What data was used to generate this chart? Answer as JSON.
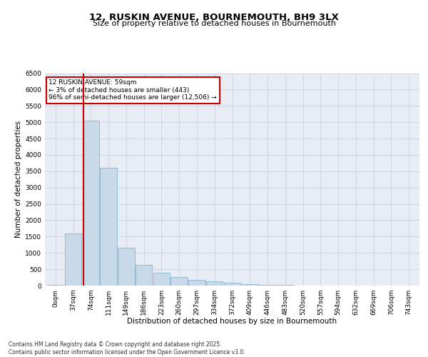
{
  "title_line1": "12, RUSKIN AVENUE, BOURNEMOUTH, BH9 3LX",
  "title_line2": "Size of property relative to detached houses in Bournemouth",
  "xlabel": "Distribution of detached houses by size in Bournemouth",
  "ylabel": "Number of detached properties",
  "bar_color": "#c8d9ea",
  "bar_edge_color": "#7aaac8",
  "property_line_x": 1.6,
  "property_line_color": "#cc0000",
  "annotation_text": "12 RUSKIN AVENUE: 59sqm\n← 3% of detached houses are smaller (443)\n96% of semi-detached houses are larger (12,506) →",
  "annotation_box_color": "#ffffff",
  "annotation_box_edge": "#cc0000",
  "categories": [
    "0sqm",
    "37sqm",
    "74sqm",
    "111sqm",
    "149sqm",
    "186sqm",
    "223sqm",
    "260sqm",
    "297sqm",
    "334sqm",
    "372sqm",
    "409sqm",
    "446sqm",
    "483sqm",
    "520sqm",
    "557sqm",
    "594sqm",
    "632sqm",
    "669sqm",
    "706sqm",
    "743sqm"
  ],
  "bar_heights": [
    30,
    1600,
    5050,
    3600,
    1150,
    630,
    390,
    260,
    175,
    130,
    80,
    45,
    25,
    12,
    6,
    3,
    2,
    1,
    0,
    0,
    0
  ],
  "ylim": [
    0,
    6500
  ],
  "yticks": [
    0,
    500,
    1000,
    1500,
    2000,
    2500,
    3000,
    3500,
    4000,
    4500,
    5000,
    5500,
    6000,
    6500
  ],
  "grid_color": "#ccd5e0",
  "bg_color": "#e8edf5",
  "footnote": "Contains HM Land Registry data © Crown copyright and database right 2025.\nContains public sector information licensed under the Open Government Licence v3.0.",
  "footnote_fontsize": 5.5,
  "title1_fontsize": 9.5,
  "title2_fontsize": 8,
  "axis_label_fontsize": 7.5,
  "tick_fontsize": 6.5
}
